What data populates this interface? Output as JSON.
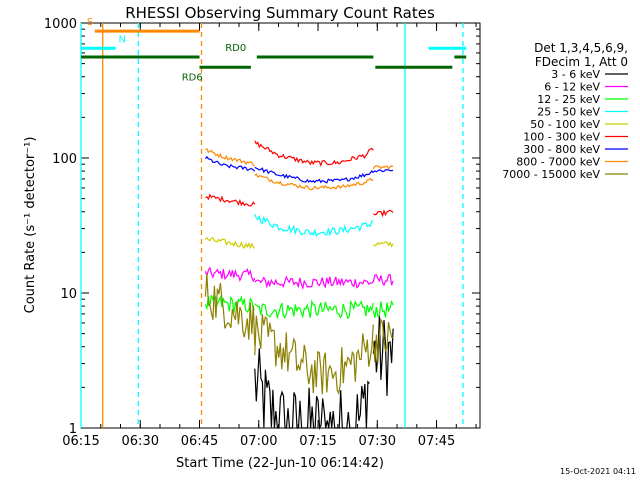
{
  "chart_data": {
    "type": "line",
    "title": "RHESSI Observing Summary Count Rates",
    "xlabel": "Start Time (22-Jun-10 06:14:42)",
    "ylabel": "Count Rate (s⁻¹ detector⁻¹)",
    "yscale": "log",
    "ylim": [
      1,
      1000
    ],
    "xlim_minutes": [
      0,
      101
    ],
    "x_ticks": [
      {
        "label": "06:15",
        "minute": 0
      },
      {
        "label": "06:30",
        "minute": 15
      },
      {
        "label": "06:45",
        "minute": 30
      },
      {
        "label": "07:00",
        "minute": 45
      },
      {
        "label": "07:15",
        "minute": 60
      },
      {
        "label": "07:30",
        "minute": 75
      },
      {
        "label": "07:45",
        "minute": 90
      }
    ],
    "y_ticks": [
      {
        "label": "1",
        "value": 1
      },
      {
        "label": "10",
        "value": 10
      },
      {
        "label": "100",
        "value": 100
      },
      {
        "label": "1000",
        "value": 1000
      }
    ],
    "legend_header": [
      "Det 1,3,4,5,6,9,",
      "FDecim 1, Att 0"
    ],
    "legend_position": "right",
    "timestamp": "15-Oct-2021 04:11",
    "series": [
      {
        "name": "3 - 6 keV",
        "color": "#000000",
        "noise": 0.9,
        "segments": [
          [
            [
              44,
              2.2
            ],
            [
              48,
              1.3
            ],
            [
              52,
              1.0
            ],
            [
              57,
              1.0
            ],
            [
              62,
              1.0
            ],
            [
              67,
              1.0
            ],
            [
              71,
              1.2
            ],
            [
              73,
              2.3
            ]
          ],
          [
            [
              74,
              3.5
            ],
            [
              79,
              3.5
            ]
          ]
        ]
      },
      {
        "name": "6 - 12 keV",
        "color": "#ff00ff",
        "noise": 0.12,
        "segments": [
          [
            [
              31.5,
              14
            ],
            [
              44,
              13.5
            ]
          ],
          [
            [
              44,
              12
            ],
            [
              74,
              12
            ]
          ],
          [
            [
              74,
              12.5
            ],
            [
              79,
              12.5
            ]
          ]
        ]
      },
      {
        "name": "12 - 25 keV",
        "color": "#00ff00",
        "noise": 0.18,
        "segments": [
          [
            [
              31.5,
              8.5
            ],
            [
              44,
              8
            ]
          ],
          [
            [
              44,
              7.5
            ],
            [
              74,
              7.5
            ]
          ],
          [
            [
              74,
              7.5
            ],
            [
              79,
              7.5
            ]
          ]
        ]
      },
      {
        "name": "25 - 50 keV",
        "color": "#00ffff",
        "noise": 0.08,
        "segments": [
          [
            [
              44,
              37
            ],
            [
              50,
              31
            ],
            [
              58,
              28
            ],
            [
              66,
              29
            ],
            [
              73,
              32
            ],
            [
              74,
              35
            ]
          ]
        ]
      },
      {
        "name": "50 - 100 keV",
        "color": "#cccc00",
        "noise": 0.06,
        "segments": [
          [
            [
              31.5,
              25
            ],
            [
              44,
              22
            ]
          ],
          [
            [
              74,
              23
            ],
            [
              79,
              23
            ]
          ]
        ]
      },
      {
        "name": "100 - 300 keV",
        "color": "#ff0000",
        "noise": 0.05,
        "segments": [
          [
            [
              31.5,
              52
            ],
            [
              44,
              45
            ]
          ],
          [
            [
              44,
              130
            ],
            [
              50,
              105
            ],
            [
              58,
              92
            ],
            [
              65,
              92
            ],
            [
              72,
              105
            ],
            [
              74,
              117
            ]
          ],
          [
            [
              74,
              38
            ],
            [
              79,
              40
            ]
          ]
        ]
      },
      {
        "name": "300 - 800 keV",
        "color": "#0000ff",
        "noise": 0.04,
        "segments": [
          [
            [
              31.5,
              100
            ],
            [
              36,
              88
            ],
            [
              44,
              82
            ]
          ],
          [
            [
              44,
              85
            ],
            [
              50,
              75
            ],
            [
              58,
              67
            ],
            [
              66,
              68
            ],
            [
              72,
              75
            ],
            [
              74,
              80
            ]
          ],
          [
            [
              74,
              80
            ],
            [
              79,
              82
            ]
          ]
        ]
      },
      {
        "name": "800 - 7000 keV",
        "color": "#ff8800",
        "noise": 0.04,
        "segments": [
          [
            [
              31.5,
              115
            ],
            [
              36,
              102
            ],
            [
              44,
              90
            ]
          ],
          [
            [
              44,
              75
            ],
            [
              50,
              66
            ],
            [
              58,
              60
            ],
            [
              66,
              61
            ],
            [
              72,
              66
            ],
            [
              74,
              70
            ]
          ],
          [
            [
              74,
              85
            ],
            [
              79,
              86
            ]
          ]
        ]
      },
      {
        "name": "7000 - 15000 keV",
        "color": "#8b8000",
        "noise": 0.5,
        "segments": [
          [
            [
              31.5,
              10
            ],
            [
              38,
              7.5
            ],
            [
              44,
              6
            ]
          ],
          [
            [
              44,
              5
            ],
            [
              50,
              4
            ],
            [
              55,
              3
            ],
            [
              60,
              2.5
            ],
            [
              65,
              2.6
            ],
            [
              70,
              3.2
            ],
            [
              74,
              4.5
            ]
          ],
          [
            [
              74,
              4.5
            ],
            [
              79,
              4.6
            ]
          ]
        ]
      }
    ],
    "flags": [
      {
        "label": "S",
        "color": "#ff8800",
        "y": 870,
        "from": 3.5,
        "to": 30,
        "label_at": 1.5
      },
      {
        "label": "N",
        "color": "#00ffff",
        "y": 650,
        "from": 0,
        "to": 8.8,
        "label_at": 9.5
      },
      {
        "label": "",
        "color": "#00ffff",
        "y": 650,
        "from": 88,
        "to": 97.5,
        "label_at": null
      },
      {
        "label": "",
        "color": "#006400",
        "y": 560,
        "from": 0,
        "to": 30,
        "label_at": null
      },
      {
        "label": "RD6",
        "color": "#006400",
        "y": 470,
        "from": 30,
        "to": 43,
        "label_at": 25.5
      },
      {
        "label": "RD0",
        "color": "#006400",
        "y": 560,
        "from": 44.5,
        "to": 74,
        "label_at": 36.5
      },
      {
        "label": "",
        "color": "#006400",
        "y": 470,
        "from": 74.5,
        "to": 94,
        "label_at": null
      },
      {
        "label": "",
        "color": "#006400",
        "y": 560,
        "from": 94.5,
        "to": 97.5,
        "label_at": null
      }
    ],
    "vlines": [
      {
        "x": 0,
        "color": "#00ffff",
        "dashed": false
      },
      {
        "x": 5.5,
        "color": "#ff8800",
        "dashed": false
      },
      {
        "x": 14.5,
        "color": "#00ffff",
        "dashed": true
      },
      {
        "x": 30.5,
        "color": "#ff8800",
        "dashed": true
      },
      {
        "x": 82,
        "color": "#00ffff",
        "dashed": false
      },
      {
        "x": 96.7,
        "color": "#00ffff",
        "dashed": true
      }
    ]
  }
}
